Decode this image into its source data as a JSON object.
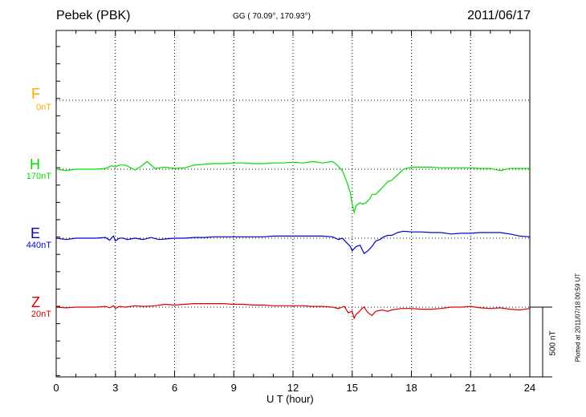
{
  "header": {
    "station": "Pebek (PBK)",
    "coords": "GG ( 70.09°, 170.93°)",
    "date": "2011/06/17"
  },
  "footer": {
    "plotted": "Plotted at 2011/07/18 00:59 UT"
  },
  "chart_data": {
    "type": "line",
    "xlabel": "U T (hour)",
    "xlim": [
      0,
      24
    ],
    "xticks": [
      0,
      3,
      6,
      9,
      12,
      15,
      18,
      21,
      24
    ],
    "scale_bar": "500 nT",
    "colors": {
      "F": "#ffa500",
      "H": "#00dd00",
      "E": "#0000cc",
      "Z": "#dd0000"
    },
    "series": [
      {
        "name": "F",
        "baseline": "0nT",
        "x": [],
        "y": []
      },
      {
        "name": "H",
        "baseline": "170nT",
        "x": [
          0,
          0.5,
          1,
          1.5,
          2,
          2.5,
          2.8,
          3,
          3.2,
          3.5,
          4,
          4.3,
          4.6,
          5,
          5.5,
          6,
          6.5,
          7,
          7.5,
          8,
          8.5,
          9,
          9.5,
          10,
          10.5,
          11,
          11.5,
          12,
          12.5,
          13,
          13.5,
          14,
          14.2,
          14.5,
          14.7,
          14.9,
          15,
          15.1,
          15.2,
          15.4,
          15.5,
          15.7,
          15.9,
          16,
          16.2,
          16.4,
          16.6,
          16.8,
          17,
          17.3,
          17.6,
          18,
          18.5,
          19,
          19.5,
          20,
          20.5,
          21,
          21.5,
          22,
          22.5,
          23,
          23.5,
          24
        ],
        "y": [
          170,
          160,
          170,
          170,
          170,
          175,
          195,
          185,
          200,
          200,
          165,
          190,
          225,
          175,
          185,
          175,
          180,
          200,
          205,
          210,
          210,
          215,
          215,
          210,
          210,
          215,
          215,
          220,
          215,
          225,
          215,
          225,
          205,
          160,
          90,
          5,
          -80,
          -140,
          -90,
          -70,
          -80,
          -70,
          -40,
          -10,
          -10,
          20,
          50,
          80,
          90,
          130,
          170,
          185,
          185,
          185,
          180,
          180,
          180,
          180,
          175,
          175,
          160,
          175,
          175,
          175
        ]
      },
      {
        "name": "E",
        "baseline": "440nT",
        "x": [
          0,
          0.5,
          1,
          1.5,
          2,
          2.5,
          2.7,
          2.9,
          3,
          3.2,
          3.4,
          3.6,
          4,
          4.4,
          4.8,
          5.2,
          5.6,
          6,
          6.5,
          7,
          7.5,
          8,
          8.5,
          9,
          9.5,
          10,
          10.5,
          11,
          11.5,
          12,
          12.5,
          13,
          13.5,
          14,
          14.3,
          14.5,
          14.7,
          14.9,
          15,
          15.2,
          15.4,
          15.6,
          15.8,
          16,
          16.2,
          16.4,
          16.6,
          16.8,
          17,
          17.3,
          17.6,
          18,
          18.5,
          19,
          19.5,
          20,
          20.5,
          21,
          21.5,
          22,
          22.5,
          23,
          23.5,
          24
        ],
        "y": [
          440,
          430,
          440,
          440,
          440,
          445,
          425,
          455,
          420,
          440,
          440,
          430,
          440,
          430,
          445,
          430,
          435,
          440,
          440,
          445,
          445,
          450,
          450,
          450,
          450,
          450,
          450,
          455,
          455,
          455,
          455,
          455,
          455,
          450,
          430,
          440,
          410,
          380,
          350,
          380,
          390,
          330,
          350,
          380,
          420,
          430,
          450,
          460,
          460,
          480,
          490,
          485,
          485,
          480,
          480,
          470,
          475,
          475,
          480,
          480,
          480,
          470,
          455,
          450
        ]
      },
      {
        "name": "Z",
        "baseline": "20nT",
        "x": [
          0,
          0.5,
          1,
          1.5,
          2,
          2.5,
          2.7,
          2.9,
          3,
          3.2,
          3.5,
          4,
          4.5,
          5,
          5.5,
          6,
          6.5,
          7,
          7.5,
          8,
          8.5,
          9,
          9.5,
          10,
          10.5,
          11,
          11.5,
          12,
          12.5,
          13,
          13.5,
          14,
          14.3,
          14.6,
          14.8,
          15,
          15.1,
          15.2,
          15.3,
          15.5,
          15.6,
          15.8,
          16,
          16.2,
          16.5,
          16.8,
          17,
          17.5,
          18,
          18.5,
          19,
          19.5,
          20,
          20.5,
          21,
          21.5,
          22,
          22.5,
          23,
          23.5,
          24
        ],
        "y": [
          20,
          15,
          20,
          20,
          20,
          25,
          15,
          30,
          10,
          25,
          20,
          30,
          25,
          30,
          40,
          35,
          40,
          45,
          45,
          45,
          45,
          40,
          40,
          35,
          35,
          30,
          30,
          30,
          30,
          25,
          25,
          20,
          10,
          25,
          -20,
          -10,
          -60,
          -30,
          -20,
          10,
          20,
          -20,
          -40,
          -10,
          0,
          -10,
          0,
          10,
          10,
          5,
          5,
          10,
          20,
          20,
          25,
          15,
          10,
          15,
          5,
          0,
          10
        ]
      }
    ]
  }
}
